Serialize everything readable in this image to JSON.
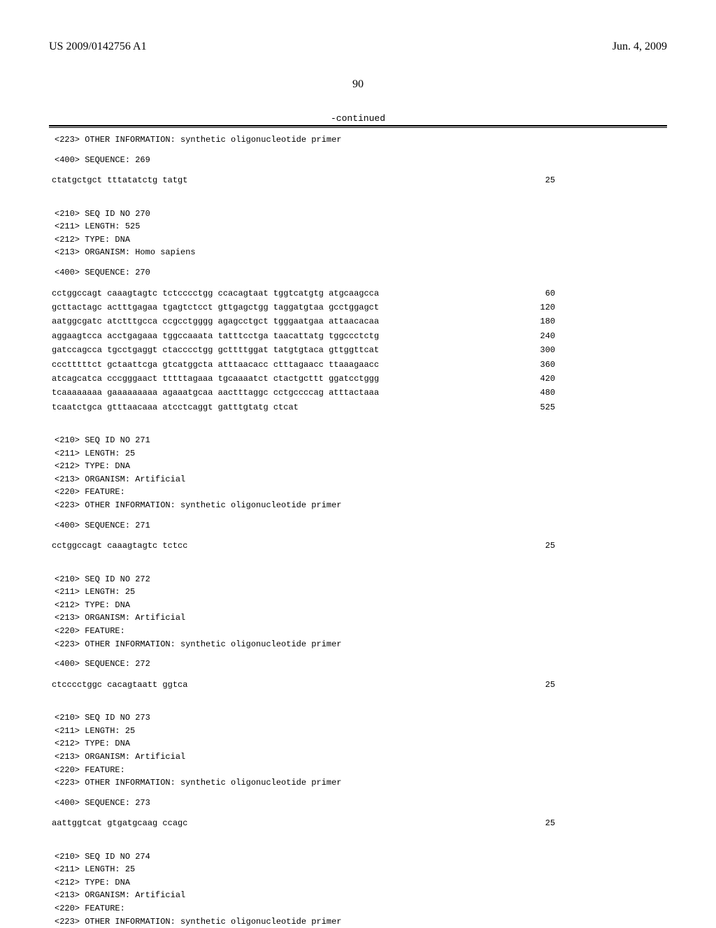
{
  "header": {
    "pub_no": "US 2009/0142756 A1",
    "date": "Jun. 4, 2009"
  },
  "page_number": "90",
  "continued": "-continued",
  "entries": [
    {
      "meta": [
        "<223> OTHER INFORMATION: synthetic oligonucleotide primer"
      ],
      "seq_label": "<400> SEQUENCE: 269",
      "lines": [
        {
          "seq": "ctatgctgct tttatatctg tatgt",
          "pos": "25"
        }
      ]
    },
    {
      "meta": [
        "<210> SEQ ID NO 270",
        "<211> LENGTH: 525",
        "<212> TYPE: DNA",
        "<213> ORGANISM: Homo sapiens"
      ],
      "seq_label": "<400> SEQUENCE: 270",
      "lines": [
        {
          "seq": "cctggccagt caaagtagtc tctcccctgg ccacagtaat tggtcatgtg atgcaagcca",
          "pos": "60"
        },
        {
          "seq": "gcttactagc actttgagaa tgagtctcct gttgagctgg taggatgtaa gcctggagct",
          "pos": "120"
        },
        {
          "seq": "aatggcgatc atctttgcca ccgcctgggg agagcctgct tgggaatgaa attaacacaa",
          "pos": "180"
        },
        {
          "seq": "aggaagtcca acctgagaaa tggccaaata tatttcctga taacattatg tggccctctg",
          "pos": "240"
        },
        {
          "seq": "gatccagcca tgcctgaggt ctacccctgg gcttttggat tatgtgtaca gttggttcat",
          "pos": "300"
        },
        {
          "seq": "ccctttttct gctaattcga gtcatggcta atttaacacc ctttagaacc ttaaagaacc",
          "pos": "360"
        },
        {
          "seq": "atcagcatca cccgggaact tttttagaaa tgcaaaatct ctactgcttt ggatcctggg",
          "pos": "420"
        },
        {
          "seq": "tcaaaaaaaa gaaaaaaaaa agaaatgcaa aactttaggc cctgccccag atttactaaa",
          "pos": "480"
        },
        {
          "seq": "tcaatctgca gtttaacaaa atcctcaggt gatttgtatg ctcat",
          "pos": "525"
        }
      ]
    },
    {
      "meta": [
        "<210> SEQ ID NO 271",
        "<211> LENGTH: 25",
        "<212> TYPE: DNA",
        "<213> ORGANISM: Artificial",
        "<220> FEATURE:",
        "<223> OTHER INFORMATION: synthetic oligonucleotide primer"
      ],
      "seq_label": "<400> SEQUENCE: 271",
      "lines": [
        {
          "seq": "cctggccagt caaagtagtc tctcc",
          "pos": "25"
        }
      ]
    },
    {
      "meta": [
        "<210> SEQ ID NO 272",
        "<211> LENGTH: 25",
        "<212> TYPE: DNA",
        "<213> ORGANISM: Artificial",
        "<220> FEATURE:",
        "<223> OTHER INFORMATION: synthetic oligonucleotide primer"
      ],
      "seq_label": "<400> SEQUENCE: 272",
      "lines": [
        {
          "seq": "ctcccctggc cacagtaatt ggtca",
          "pos": "25"
        }
      ]
    },
    {
      "meta": [
        "<210> SEQ ID NO 273",
        "<211> LENGTH: 25",
        "<212> TYPE: DNA",
        "<213> ORGANISM: Artificial",
        "<220> FEATURE:",
        "<223> OTHER INFORMATION: synthetic oligonucleotide primer"
      ],
      "seq_label": "<400> SEQUENCE: 273",
      "lines": [
        {
          "seq": "aattggtcat gtgatgcaag ccagc",
          "pos": "25"
        }
      ]
    },
    {
      "meta": [
        "<210> SEQ ID NO 274",
        "<211> LENGTH: 25",
        "<212> TYPE: DNA",
        "<213> ORGANISM: Artificial",
        "<220> FEATURE:",
        "<223> OTHER INFORMATION: synthetic oligonucleotide primer"
      ],
      "seq_label": "",
      "lines": []
    }
  ]
}
